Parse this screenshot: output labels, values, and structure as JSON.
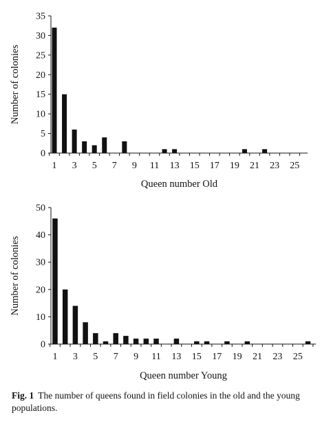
{
  "chart_data": [
    {
      "type": "bar",
      "xlabel": "Queen number Old",
      "ylabel": "Number of colonies",
      "ylim": [
        0,
        35
      ],
      "yticks": [
        0,
        5,
        10,
        15,
        20,
        25,
        30,
        35
      ],
      "xlim": [
        1,
        26
      ],
      "xticks": [
        1,
        3,
        5,
        7,
        9,
        11,
        13,
        15,
        17,
        19,
        21,
        23,
        25
      ],
      "x": [
        1,
        2,
        3,
        4,
        5,
        6,
        7,
        8,
        9,
        10,
        11,
        12,
        13,
        14,
        15,
        16,
        17,
        18,
        19,
        20,
        21,
        22,
        23,
        24,
        25
      ],
      "values": [
        32,
        15,
        6,
        3,
        2,
        4,
        0,
        3,
        0,
        0,
        0,
        1,
        1,
        0,
        0,
        0,
        0,
        0,
        0,
        1,
        0,
        1,
        0,
        0,
        0
      ]
    },
    {
      "type": "bar",
      "xlabel": "Queen number Young",
      "ylabel": "Number of colonies",
      "ylim": [
        0,
        50
      ],
      "yticks": [
        0,
        10,
        20,
        30,
        40,
        50
      ],
      "xlim": [
        1,
        27
      ],
      "xticks": [
        1,
        3,
        5,
        7,
        9,
        11,
        13,
        15,
        17,
        19,
        21,
        23,
        25
      ],
      "x": [
        1,
        2,
        3,
        4,
        5,
        6,
        7,
        8,
        9,
        10,
        11,
        12,
        13,
        14,
        15,
        16,
        17,
        18,
        19,
        20,
        21,
        22,
        23,
        24,
        25,
        26
      ],
      "values": [
        46,
        20,
        14,
        8,
        4,
        1,
        4,
        3,
        2,
        2,
        2,
        0,
        2,
        0,
        1,
        1,
        0,
        1,
        0,
        1,
        0,
        0,
        0,
        0,
        0,
        1
      ]
    }
  ],
  "caption": {
    "label": "Fig. 1",
    "text": "The number of queens found in field colonies in the old and the young populations."
  }
}
